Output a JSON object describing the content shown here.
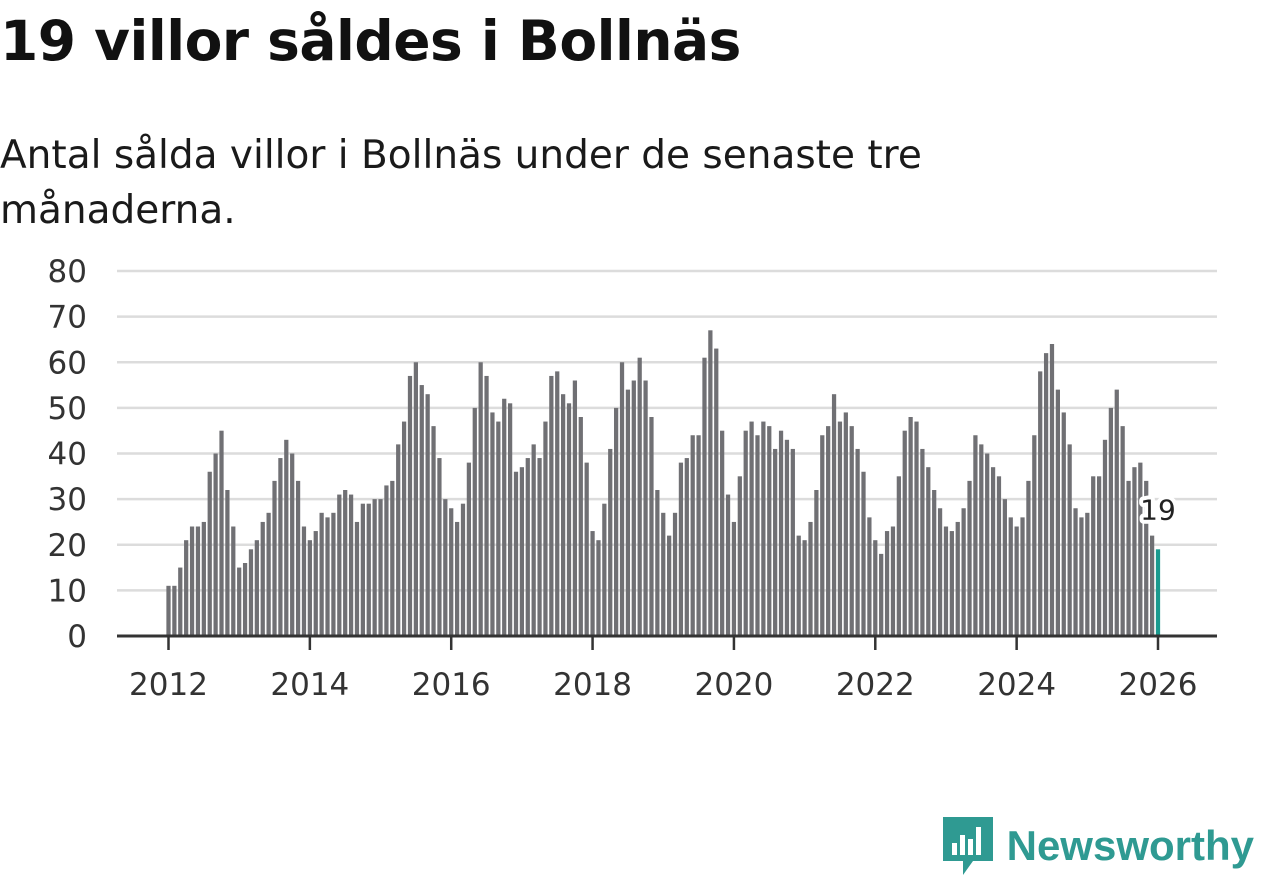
{
  "header": {
    "title": "19 villor såldes i Bollnäs",
    "subtitle": "Antal sålda villor i Bollnäs under de senaste tre månaderna."
  },
  "brand": {
    "name": "Newsworthy",
    "color": "#2f9a92"
  },
  "colors": {
    "bar": "#707074",
    "highlight": "#1a9a8e",
    "grid": "#dcdcdc",
    "axis": "#333333",
    "text": "#333333"
  },
  "chart_data": {
    "type": "bar",
    "title": "19 villor såldes i Bollnäs",
    "subtitle": "Antal sålda villor i Bollnäs under de senaste tre månaderna.",
    "xlabel": "",
    "ylabel": "",
    "ylim": [
      0,
      80
    ],
    "yticks": [
      0,
      10,
      20,
      30,
      40,
      50,
      60,
      70,
      80
    ],
    "xticks": [
      "2012",
      "2014",
      "2016",
      "2018",
      "2020",
      "2022",
      "2024",
      "2026"
    ],
    "start": "2012-01",
    "interval": "month",
    "grid": true,
    "highlight_label": "19",
    "values": [
      11,
      11,
      15,
      21,
      24,
      24,
      25,
      36,
      40,
      45,
      32,
      24,
      15,
      16,
      19,
      21,
      25,
      27,
      34,
      39,
      43,
      40,
      34,
      24,
      21,
      23,
      27,
      26,
      27,
      31,
      32,
      31,
      25,
      29,
      29,
      30,
      30,
      33,
      34,
      42,
      47,
      57,
      60,
      55,
      53,
      46,
      39,
      30,
      28,
      25,
      29,
      38,
      50,
      60,
      57,
      49,
      47,
      52,
      51,
      36,
      37,
      39,
      42,
      39,
      47,
      57,
      58,
      53,
      51,
      56,
      48,
      38,
      23,
      21,
      29,
      41,
      50,
      60,
      54,
      56,
      61,
      56,
      48,
      32,
      27,
      22,
      27,
      38,
      39,
      44,
      44,
      61,
      67,
      63,
      45,
      31,
      25,
      35,
      45,
      47,
      44,
      47,
      46,
      41,
      45,
      43,
      41,
      22,
      21,
      25,
      32,
      44,
      46,
      53,
      47,
      49,
      46,
      41,
      36,
      26,
      21,
      18,
      23,
      24,
      35,
      45,
      48,
      47,
      41,
      37,
      32,
      28,
      24,
      23,
      25,
      28,
      34,
      44,
      42,
      40,
      37,
      35,
      30,
      26,
      24,
      26,
      34,
      44,
      58,
      62,
      64,
      54,
      49,
      42,
      28,
      26,
      27,
      35,
      35,
      43,
      50,
      54,
      46,
      34,
      37,
      38,
      34,
      22,
      19
    ]
  }
}
